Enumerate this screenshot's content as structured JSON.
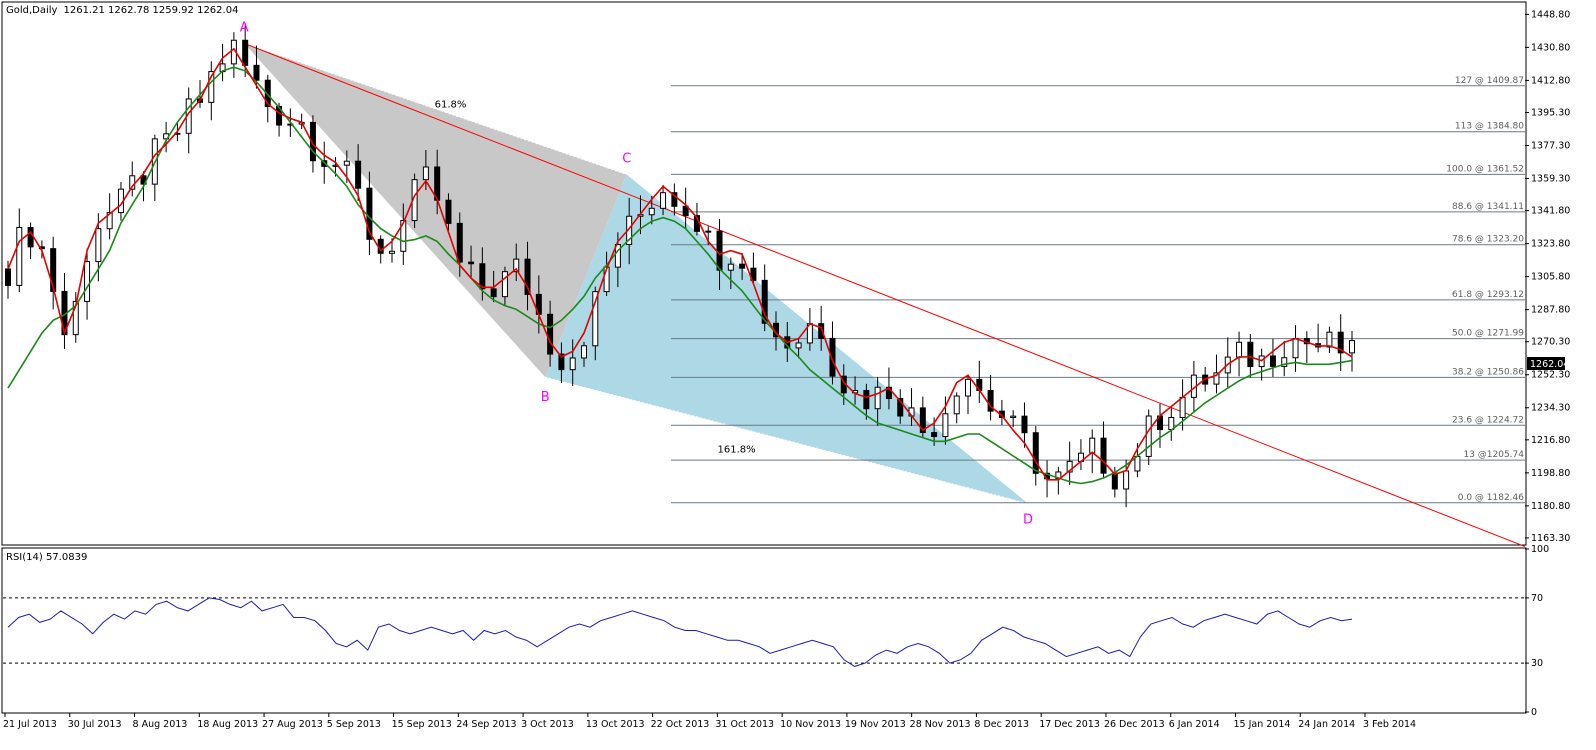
{
  "window": {
    "symbol_caption": "Gold,Daily",
    "ohlc_caption": "1261.21 1262.78 1259.92 1262.04",
    "last_price_tag": "1262.04"
  },
  "colors": {
    "background": "#ffffff",
    "frame": "#000000",
    "candle_up": "#ffffff",
    "candle_down": "#000000",
    "ma_fast": "#e60000",
    "ma_slow": "#1a8a1a",
    "ma_transition": "#e8e800",
    "trendline": "#ff0000",
    "fib_lines": "#6a7a84",
    "pattern_ABC_fill": "#c8c8c8",
    "pattern_BCD_fill": "#add8e6",
    "point_labels": "#ff00ff",
    "rsi_line": "#1c1cb0"
  },
  "chart_data": [
    {
      "type": "candlestick",
      "panel": "main",
      "title": "Gold,Daily",
      "ylim": [
        1160,
        1455
      ],
      "y_ticks": [
        "1448.80",
        "1430.80",
        "1412.80",
        "1395.30",
        "1377.30",
        "1359.30",
        "1341.80",
        "1323.80",
        "1305.80",
        "1287.80",
        "1270.30",
        "1252.30",
        "1234.30",
        "1216.80",
        "1198.80",
        "1180.80",
        "1163.30"
      ],
      "x_tick_labels": [
        "21 Jul 2013",
        "30 Jul 2013",
        "8 Aug 2013",
        "18 Aug 2013",
        "27 Aug 2013",
        "5 Sep 2013",
        "15 Sep 2013",
        "24 Sep 2013",
        "3 Oct 2013",
        "13 Oct 2013",
        "22 Oct 2013",
        "31 Oct 2013",
        "10 Nov 2013",
        "19 Nov 2013",
        "28 Nov 2013",
        "8 Dec 2013",
        "17 Dec 2013",
        "26 Dec 2013",
        "6 Jan 2014",
        "15 Jan 2014",
        "24 Jan 2014",
        "3 Feb 2014"
      ],
      "harmonic_points": [
        {
          "label": "A",
          "date": "2013-08-28",
          "price": 1433
        },
        {
          "label": "B",
          "date": "2013-10-15",
          "price": 1251
        },
        {
          "label": "C",
          "date": "2013-10-28",
          "price": 1361.5
        },
        {
          "label": "D",
          "date": "2013-12-31",
          "price": 1182
        }
      ],
      "ratio_labels": [
        "61.8%",
        "161.8%"
      ],
      "fib_levels": [
        {
          "label": "127 @ 1409.87",
          "price": 1409.87
        },
        {
          "label": "113 @ 1384.80",
          "price": 1384.8
        },
        {
          "label": "100.0 @ 1361.52",
          "price": 1361.52
        },
        {
          "label": "88.6 @ 1341.11",
          "price": 1341.11
        },
        {
          "label": "78.6 @ 1323.20",
          "price": 1323.2
        },
        {
          "label": "61.8 @ 1293.12",
          "price": 1293.12
        },
        {
          "label": "50.0 @ 1271.99",
          "price": 1271.99
        },
        {
          "label": "38.2 @ 1250.86",
          "price": 1250.86
        },
        {
          "label": "23.6 @ 1224.72",
          "price": 1224.72
        },
        {
          "label": "13 @1205.74",
          "price": 1205.74
        },
        {
          "label": "0.0 @ 1182.46",
          "price": 1182.46
        }
      ],
      "trendline": {
        "from": {
          "date": "2013-08-28",
          "price": 1433
        },
        "to": {
          "date": "2014-02-10",
          "price": 1210
        }
      },
      "series": [
        {
          "name": "",
          "style": "moving-average-fast",
          "closes_approx": [
            1310,
            1325,
            1330,
            1320,
            1300,
            1275,
            1290,
            1320,
            1335,
            1340,
            1345,
            1355,
            1362,
            1372,
            1378,
            1385,
            1395,
            1402,
            1415,
            1425,
            1430,
            1420,
            1410,
            1400,
            1395,
            1392,
            1390,
            1378,
            1372,
            1368,
            1360,
            1350,
            1330,
            1320,
            1325,
            1335,
            1350,
            1358,
            1348,
            1330,
            1312,
            1305,
            1300,
            1300,
            1305,
            1310,
            1300,
            1285,
            1270,
            1262,
            1265,
            1275,
            1292,
            1310,
            1325,
            1332,
            1340,
            1348,
            1355,
            1350,
            1345,
            1338,
            1325,
            1318,
            1320,
            1318,
            1302,
            1285,
            1275,
            1270,
            1272,
            1280,
            1278,
            1260,
            1248,
            1242,
            1240,
            1242,
            1245,
            1238,
            1230,
            1222,
            1226,
            1235,
            1248,
            1252,
            1244,
            1235,
            1230,
            1222,
            1215,
            1205,
            1195,
            1195,
            1200,
            1205,
            1210,
            1205,
            1198,
            1200,
            1212,
            1222,
            1230,
            1235,
            1240,
            1245,
            1250,
            1252,
            1258,
            1262,
            1262,
            1260,
            1265,
            1270,
            1272,
            1270,
            1268,
            1268,
            1266,
            1262
          ]
        },
        {
          "name": "",
          "style": "moving-average-slow",
          "closes_approx": [
            1245,
            1255,
            1265,
            1275,
            1282,
            1285,
            1290,
            1300,
            1310,
            1320,
            1335,
            1345,
            1355,
            1368,
            1380,
            1390,
            1398,
            1405,
            1412,
            1418,
            1420,
            1418,
            1412,
            1405,
            1398,
            1390,
            1382,
            1374,
            1368,
            1362,
            1355,
            1345,
            1338,
            1332,
            1328,
            1325,
            1326,
            1328,
            1325,
            1318,
            1312,
            1305,
            1298,
            1293,
            1290,
            1288,
            1284,
            1280,
            1278,
            1282,
            1288,
            1295,
            1305,
            1312,
            1320,
            1326,
            1332,
            1336,
            1338,
            1336,
            1332,
            1325,
            1318,
            1310,
            1304,
            1298,
            1290,
            1282,
            1275,
            1268,
            1262,
            1255,
            1250,
            1245,
            1240,
            1235,
            1230,
            1226,
            1224,
            1222,
            1220,
            1218,
            1216,
            1216,
            1218,
            1220,
            1220,
            1216,
            1212,
            1208,
            1204,
            1200,
            1198,
            1196,
            1194,
            1193,
            1194,
            1196,
            1199,
            1203,
            1208,
            1213,
            1218,
            1222,
            1227,
            1232,
            1237,
            1241,
            1245,
            1249,
            1252,
            1254,
            1256,
            1258,
            1259,
            1258,
            1258,
            1258,
            1259,
            1260
          ]
        }
      ]
    },
    {
      "type": "line",
      "panel": "rsi",
      "title": "RSI(14) 57.0839",
      "ylim": [
        0,
        100
      ],
      "y_ticks": [
        "100",
        "70",
        "30",
        "0"
      ],
      "reference_lines": [
        70,
        30
      ],
      "series": [
        {
          "name": "",
          "values": [
            52,
            58,
            60,
            55,
            57,
            62,
            58,
            54,
            48,
            55,
            60,
            57,
            62,
            60,
            66,
            68,
            64,
            62,
            66,
            70,
            69,
            66,
            64,
            68,
            62,
            64,
            66,
            58,
            58,
            56,
            50,
            42,
            40,
            44,
            38,
            52,
            54,
            50,
            48,
            50,
            52,
            50,
            48,
            50,
            44,
            50,
            48,
            50,
            46,
            44,
            40,
            44,
            48,
            52,
            54,
            52,
            56,
            58,
            60,
            62,
            60,
            58,
            56,
            52,
            50,
            50,
            48,
            46,
            44,
            44,
            42,
            40,
            36,
            38,
            40,
            42,
            44,
            42,
            40,
            32,
            28,
            30,
            35,
            38,
            36,
            40,
            42,
            40,
            36,
            30,
            32,
            36,
            44,
            48,
            52,
            50,
            46,
            44,
            42,
            38,
            34,
            36,
            38,
            40,
            36,
            38,
            34,
            46,
            54,
            56,
            58,
            54,
            52,
            56,
            58,
            60,
            58,
            56,
            54,
            60,
            62,
            58,
            54,
            52,
            56,
            58,
            56,
            57
          ]
        }
      ]
    }
  ]
}
